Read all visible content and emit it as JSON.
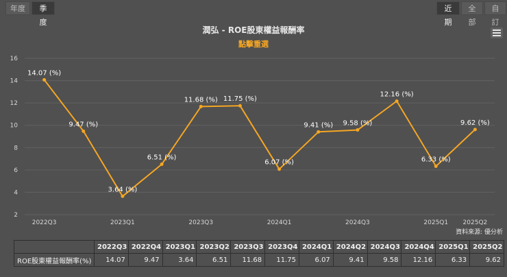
{
  "period_tabs": [
    {
      "label": "年度",
      "active": false
    },
    {
      "label": "季度",
      "active": true
    }
  ],
  "range_tabs": [
    {
      "label": "近期",
      "active": true
    },
    {
      "label": "全部",
      "active": false
    },
    {
      "label": "自訂",
      "active": false
    }
  ],
  "menu_icon": "hamburger-menu-icon",
  "source_note": "資料來源: 優分析",
  "table": {
    "row_label": "ROE股東權益報酬率(%)"
  },
  "chart_data": {
    "type": "line",
    "title": "潤弘 - ROE股東權益報酬率",
    "subtitle": "點擊重選",
    "xlabel": "",
    "ylabel": "",
    "categories": [
      "2022Q3",
      "2022Q4",
      "2023Q1",
      "2023Q2",
      "2023Q3",
      "2023Q4",
      "2024Q1",
      "2024Q2",
      "2024Q3",
      "2024Q4",
      "2025Q1",
      "2025Q2"
    ],
    "x_tick_labels": [
      "2022Q3",
      "2023Q1",
      "2023Q3",
      "2024Q1",
      "2024Q3",
      "2025Q1",
      "2025Q2"
    ],
    "series": [
      {
        "name": "ROE股東權益報酬率(%)",
        "values": [
          14.07,
          9.47,
          3.64,
          6.51,
          11.68,
          11.75,
          6.07,
          9.41,
          9.58,
          12.16,
          6.33,
          9.62
        ]
      }
    ],
    "data_labels": [
      "14.07 (%)",
      "9.47 (%)",
      "3.64 (%)",
      "6.51 (%)",
      "11.68 (%)",
      "11.75 (%)",
      "6.07 (%)",
      "9.41 (%)",
      "9.58 (%)",
      "12.16 (%)",
      "6.33 (%)",
      "9.62 (%)"
    ],
    "table_values": [
      "14.07",
      "9.47",
      "3.64",
      "6.51",
      "11.68",
      "11.75",
      "6.07",
      "9.41",
      "9.58",
      "12.16",
      "6.33",
      "9.62"
    ],
    "yticks": [
      2,
      4,
      6,
      8,
      10,
      12,
      14,
      16
    ],
    "ylim": [
      2,
      16
    ],
    "grid": true,
    "legend": "none",
    "line_color": "#f5a623",
    "title_color": "#e8e8e8",
    "subtitle_color": "#f5a623"
  }
}
